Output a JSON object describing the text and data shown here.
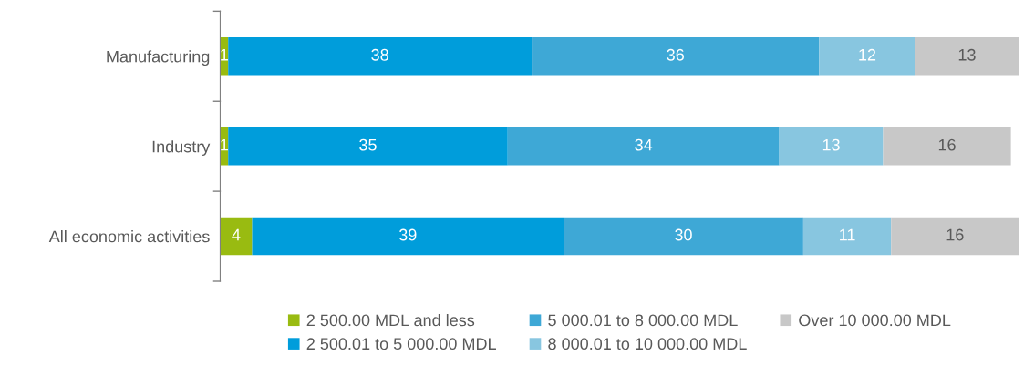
{
  "chart_data": {
    "type": "bar",
    "orientation": "horizontal",
    "stacked": true,
    "data_labels": true,
    "legend": "bottom",
    "grid": false,
    "tick_labels": "y",
    "xlim": [
      0,
      100
    ],
    "categories": [
      "Manufacturing",
      "Industry",
      "All economic activities"
    ],
    "series": [
      {
        "name": "2 500.00 MDL and less",
        "color": "#99bb11",
        "values": [
          1,
          1,
          4
        ]
      },
      {
        "name": "2 500.01 to 5 000.00 MDL",
        "color": "#009ddb",
        "values": [
          38,
          35,
          39
        ]
      },
      {
        "name": "5 000.01 to 8 000.00 MDL",
        "color": "#3ea8d6",
        "values": [
          36,
          34,
          30
        ]
      },
      {
        "name": "8 000.01 to 10 000.00 MDL",
        "color": "#88c6e0",
        "values": [
          12,
          13,
          11
        ]
      },
      {
        "name": "Over 10 000.00 MDL",
        "color": "#c8c8c8",
        "values": [
          13,
          16,
          16
        ]
      }
    ]
  }
}
